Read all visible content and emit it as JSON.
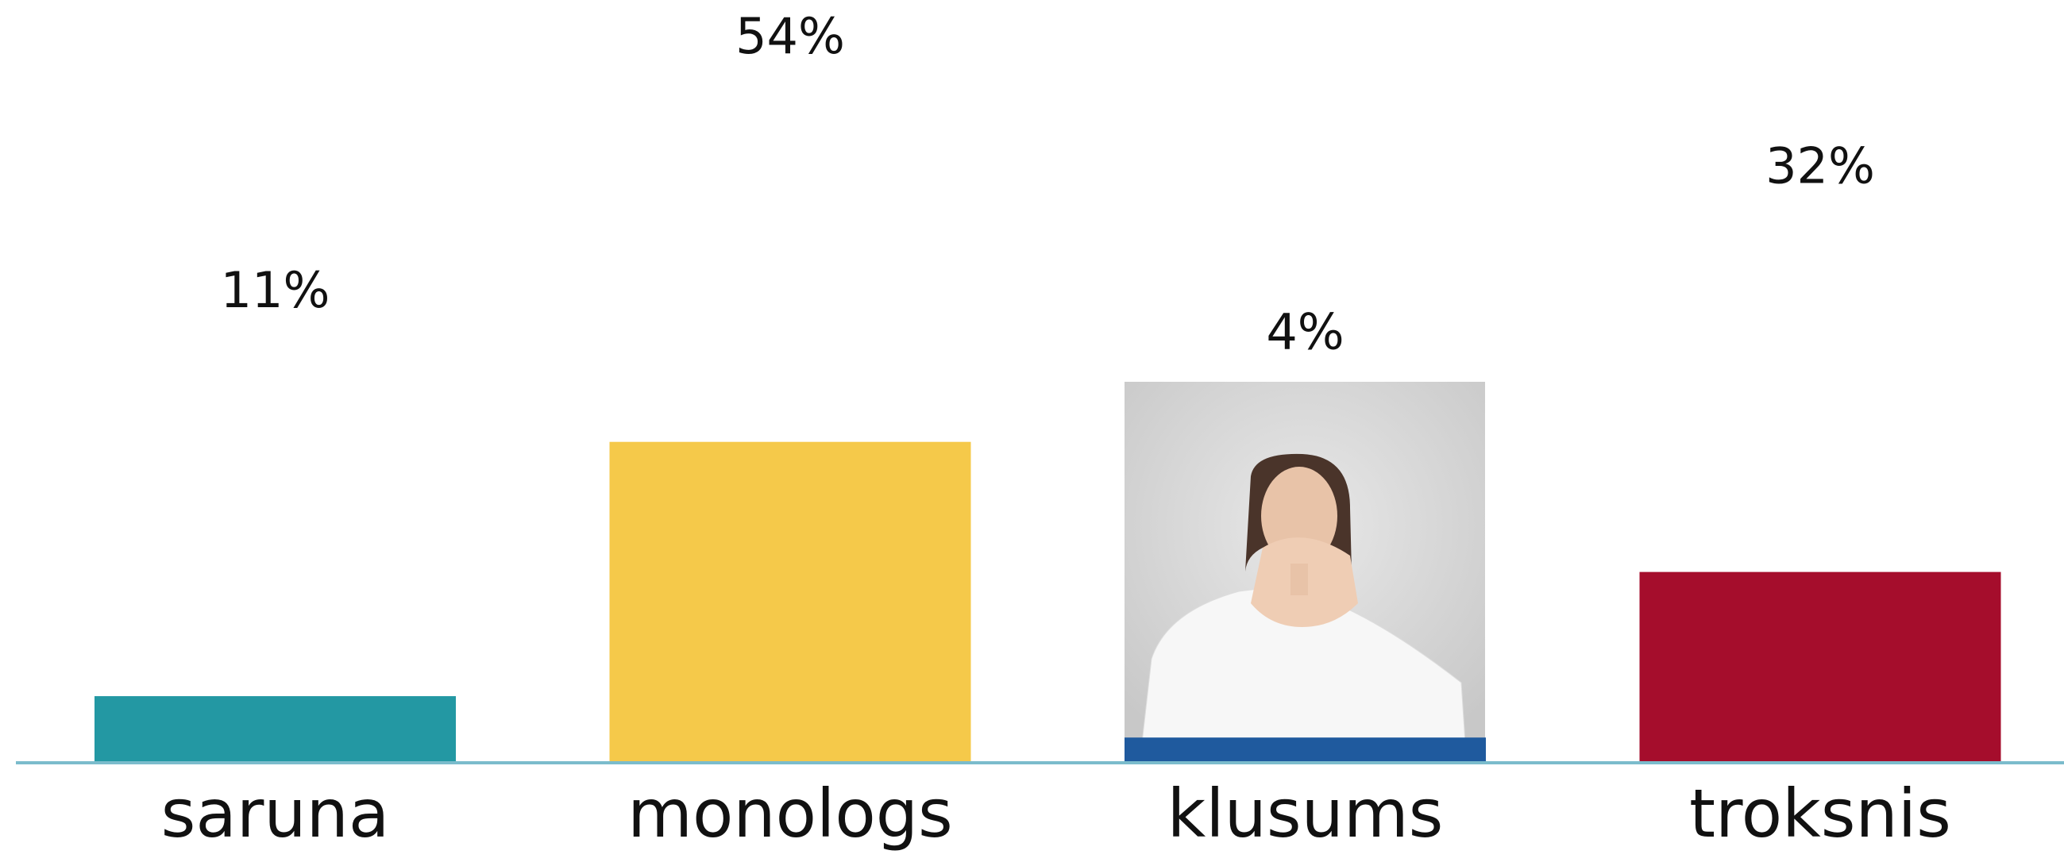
{
  "chart_data": {
    "type": "bar",
    "categories": [
      "saruna",
      "monologs",
      "klusums",
      "troksnis"
    ],
    "values": [
      11,
      54,
      4,
      32
    ],
    "value_labels": [
      "11%",
      "54%",
      "4%",
      "32%"
    ],
    "colors": [
      "#2398a3",
      "#f5c94a",
      "#1f5a9e",
      "#a50d2c"
    ]
  }
}
